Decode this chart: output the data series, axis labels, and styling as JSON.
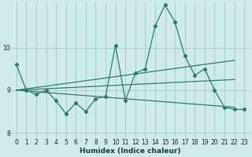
{
  "title": "",
  "xlabel": "Humidex (Indice chaleur)",
  "ylabel": "",
  "background_color": "#ceeaea",
  "grid_color": "#a8cece",
  "line_color": "#2a7d6e",
  "xlim": [
    -0.5,
    23.5
  ],
  "ylim": [
    7.88,
    11.05
  ],
  "yticks": [
    8,
    9,
    10
  ],
  "xticks": [
    0,
    1,
    2,
    3,
    4,
    5,
    6,
    7,
    8,
    9,
    10,
    11,
    12,
    13,
    14,
    15,
    16,
    17,
    18,
    19,
    20,
    21,
    22,
    23
  ],
  "series1_y": [
    9.6,
    9.0,
    8.9,
    9.0,
    8.75,
    8.45,
    8.7,
    8.5,
    8.8,
    8.85,
    10.05,
    8.75,
    9.4,
    9.5,
    10.5,
    11.0,
    10.6,
    9.8,
    9.35,
    9.5,
    9.0,
    8.6,
    8.55,
    8.55
  ],
  "line2_x": [
    0,
    22
  ],
  "line2_y": [
    9.0,
    8.6
  ],
  "line3_x": [
    0,
    22
  ],
  "line3_y": [
    9.0,
    9.25
  ],
  "line4_x": [
    0,
    22
  ],
  "line4_y": [
    9.0,
    9.7
  ]
}
